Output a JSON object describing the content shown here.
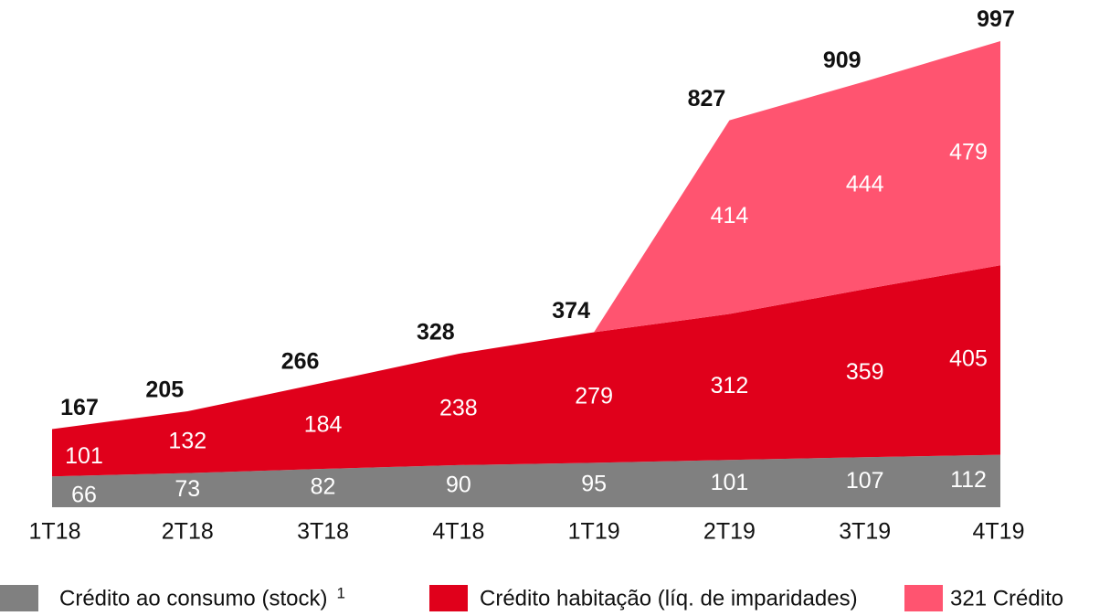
{
  "chart_data": {
    "type": "stacked_area",
    "categories": [
      "1T18",
      "2T18",
      "3T18",
      "4T18",
      "1T19",
      "2T19",
      "3T19",
      "4T19"
    ],
    "series": [
      {
        "name": "Crédito ao consumo (stock)",
        "color": "#808080",
        "values": [
          66,
          73,
          82,
          90,
          95,
          101,
          107,
          112
        ]
      },
      {
        "name": "Crédito habitação (líq. de imparidades)",
        "color": "#e0001b",
        "values": [
          101,
          132,
          184,
          238,
          279,
          312,
          359,
          405
        ]
      },
      {
        "name": "321 Crédito",
        "color": "#ff5470",
        "values": [
          null,
          null,
          null,
          null,
          0,
          414,
          444,
          479
        ],
        "value_labels": [
          null,
          null,
          null,
          null,
          null,
          "414",
          "444",
          "479"
        ]
      }
    ],
    "totals": [
      167,
      205,
      266,
      328,
      374,
      827,
      909,
      997
    ],
    "footnote_marker": "1",
    "ylim": [
      0,
      1084
    ]
  }
}
